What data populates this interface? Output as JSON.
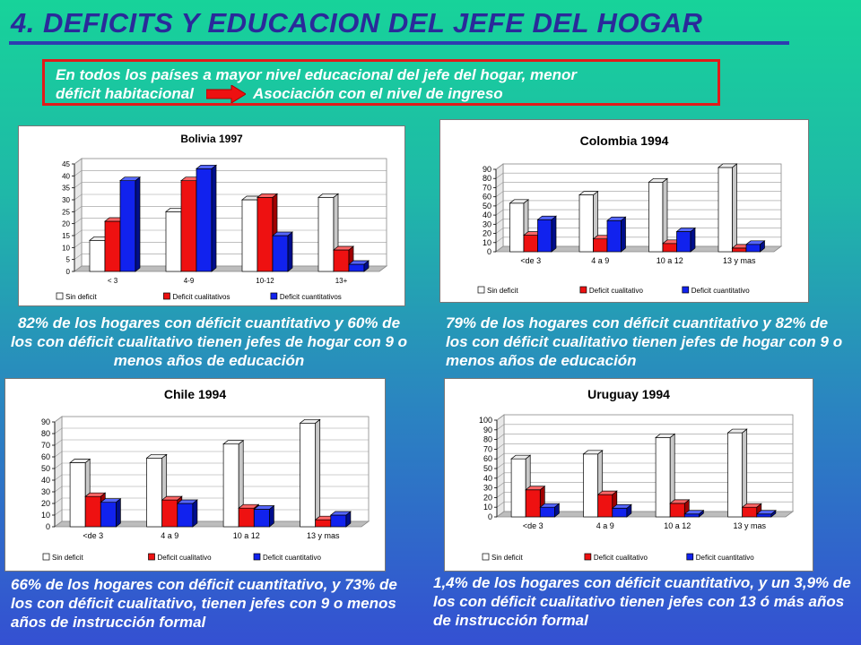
{
  "title": "4. DEFICITS Y EDUCACION DEL JEFE DEL HOGAR",
  "note": {
    "line1": "En todos los países a mayor nivel educacional del jefe del hogar, menor",
    "line2a": "déficit habitacional",
    "line2b": "Asociación con el nivel de ingreso"
  },
  "colors": {
    "sin": "#ffffff",
    "cualitativo": "#ee1111",
    "cuantitativo": "#1122ee",
    "arrow": "#ee1111"
  },
  "chart_data": [
    {
      "type": "bar",
      "title": "Bolivia 1997",
      "categories": [
        "< 3",
        "4-9",
        "10-12",
        "13+"
      ],
      "ylim": [
        0,
        45
      ],
      "ticks": [
        0,
        5,
        10,
        15,
        20,
        25,
        30,
        35,
        40,
        45
      ],
      "series": [
        {
          "name": "Sin deficit",
          "values": [
            13,
            25,
            30,
            31
          ]
        },
        {
          "name": "Deficit cualitativos",
          "values": [
            21,
            38,
            31,
            9
          ]
        },
        {
          "name": "Deficit cuantitativos",
          "values": [
            38,
            43,
            15,
            3
          ]
        }
      ],
      "legend": "bottom"
    },
    {
      "type": "bar",
      "title": "Colombia 1994",
      "categories": [
        "<de 3",
        "4 a 9",
        "10 a 12",
        "13 y mas"
      ],
      "ylim": [
        0,
        90
      ],
      "ticks": [
        0,
        10,
        20,
        30,
        40,
        50,
        60,
        70,
        80,
        90
      ],
      "series": [
        {
          "name": "Sin deficit",
          "values": [
            53,
            62,
            76,
            92
          ]
        },
        {
          "name": "Deficit cualitativo",
          "values": [
            18,
            14,
            9,
            4
          ]
        },
        {
          "name": "Deficit cuantitativo",
          "values": [
            35,
            34,
            22,
            8
          ]
        }
      ],
      "legend": "bottom"
    },
    {
      "type": "bar",
      "title": "Chile 1994",
      "categories": [
        "<de 3",
        "4 a 9",
        "10 a 12",
        "13 y mas"
      ],
      "ylim": [
        0,
        90
      ],
      "ticks": [
        0,
        10,
        20,
        30,
        40,
        50,
        60,
        70,
        80,
        90
      ],
      "series": [
        {
          "name": "Sin deficit",
          "values": [
            55,
            59,
            71,
            89
          ]
        },
        {
          "name": "Deficit cualitativo",
          "values": [
            26,
            23,
            16,
            6
          ]
        },
        {
          "name": "Deficit cuantitativo",
          "values": [
            21,
            20,
            15,
            10
          ]
        }
      ],
      "legend": "bottom"
    },
    {
      "type": "bar",
      "title": "Uruguay 1994",
      "categories": [
        "<de 3",
        "4 a 9",
        "10 a 12",
        "13 y mas"
      ],
      "ylim": [
        0,
        100
      ],
      "ticks": [
        0,
        10,
        20,
        30,
        40,
        50,
        60,
        70,
        80,
        90,
        100
      ],
      "series": [
        {
          "name": "Sin deficit",
          "values": [
            60,
            65,
            82,
            87
          ]
        },
        {
          "name": "Deficit cualitativo",
          "values": [
            28,
            23,
            14,
            10
          ]
        },
        {
          "name": "Deficit cuantitativo",
          "values": [
            10,
            9,
            3,
            3
          ]
        }
      ],
      "legend": "bottom"
    }
  ],
  "captions": [
    "82% de los hogares con déficit cuantitativo y 60% de los con déficit cualitativo tienen jefes de hogar con 9 o menos años de educación",
    "79% de los hogares con déficit cuantitativo y 82% de los con déficit cualitativo tienen jefes de hogar con 9 o menos años de educación",
    "66% de los hogares con déficit cuantitativo, y 73% de los con déficit cualitativo, tienen jefes con 9 o menos años de instrucción formal",
    "1,4% de los hogares con déficit cuantitativo, y un 3,9% de los con déficit cualitativo tienen jefes con 13 ó más años de instrucción formal"
  ]
}
